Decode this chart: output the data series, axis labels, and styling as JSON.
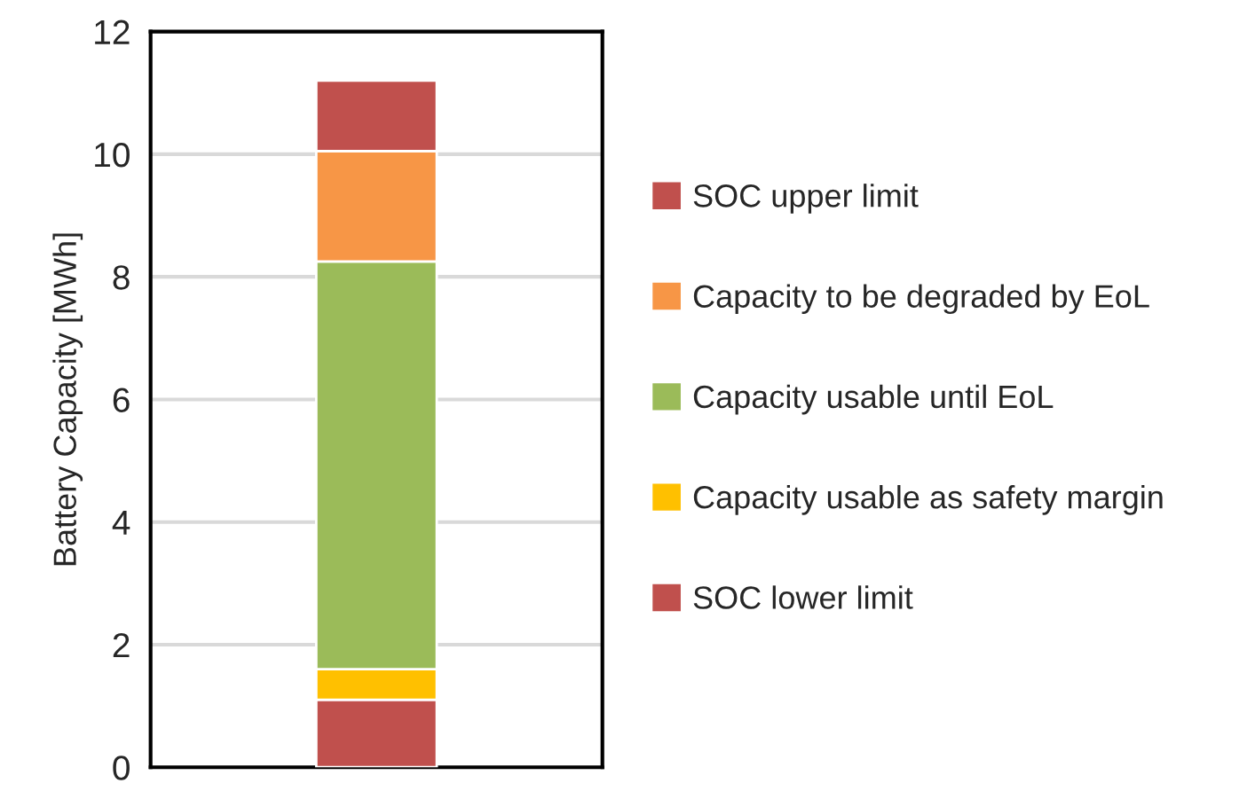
{
  "chart_data": {
    "type": "bar",
    "ylabel": "Battery Capacity [MWh]",
    "categories": [
      null
    ],
    "stacked": true,
    "series": [
      {
        "name": "SOC lower limit",
        "color": "#c0504d",
        "values": [
          1.1
        ]
      },
      {
        "name": "Capacity usable as safety margin",
        "color": "#ffc000",
        "values": [
          0.5
        ]
      },
      {
        "name": "Capacity usable until EoL",
        "color": "#9bbb59",
        "values": [
          6.65
        ]
      },
      {
        "name": "Capacity to be degraded by EoL",
        "color": "#f79646",
        "values": [
          1.8
        ]
      },
      {
        "name": "SOC upper limit",
        "color": "#c0504d",
        "values": [
          1.15
        ]
      }
    ],
    "ylim": [
      0,
      12
    ],
    "yticks": [
      0,
      2,
      4,
      6,
      8,
      10,
      12
    ],
    "grid": "y",
    "legend": "right"
  }
}
